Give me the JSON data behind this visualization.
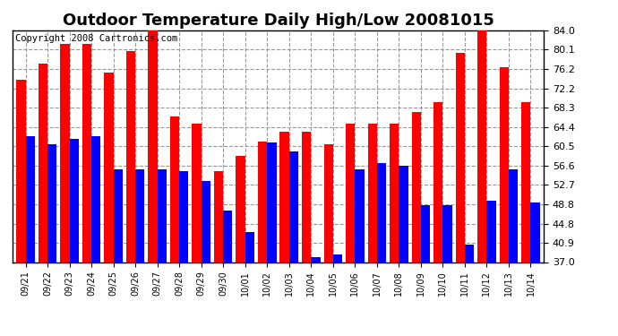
{
  "title": "Outdoor Temperature Daily High/Low 20081015",
  "copyright": "Copyright 2008 Cartronics.com",
  "dates": [
    "09/21",
    "09/22",
    "09/23",
    "09/24",
    "09/25",
    "09/26",
    "09/27",
    "09/28",
    "09/29",
    "09/30",
    "10/01",
    "10/02",
    "10/03",
    "10/04",
    "10/05",
    "10/06",
    "10/07",
    "10/08",
    "10/09",
    "10/10",
    "10/11",
    "10/12",
    "10/13",
    "10/14"
  ],
  "highs": [
    74.0,
    77.2,
    81.2,
    81.2,
    75.5,
    79.8,
    84.5,
    66.5,
    65.0,
    55.5,
    58.5,
    61.5,
    63.5,
    63.5,
    60.8,
    65.0,
    65.0,
    65.0,
    67.5,
    69.5,
    79.5,
    84.0,
    76.5,
    69.5
  ],
  "lows": [
    62.5,
    60.8,
    62.0,
    62.5,
    55.8,
    55.8,
    55.8,
    55.5,
    53.5,
    47.5,
    43.0,
    61.2,
    59.5,
    38.0,
    38.5,
    55.8,
    57.0,
    56.5,
    48.5,
    48.5,
    40.5,
    49.5,
    55.8,
    49.0
  ],
  "high_color": "#ff0000",
  "low_color": "#0000ff",
  "bar_width": 0.42,
  "ylim": [
    37.0,
    84.0
  ],
  "yticks": [
    37.0,
    40.9,
    44.8,
    48.8,
    52.7,
    56.6,
    60.5,
    64.4,
    68.3,
    72.2,
    76.2,
    80.1,
    84.0
  ],
  "background_color": "#ffffff",
  "grid_color": "#999999",
  "title_fontsize": 13,
  "copyright_fontsize": 7.5
}
